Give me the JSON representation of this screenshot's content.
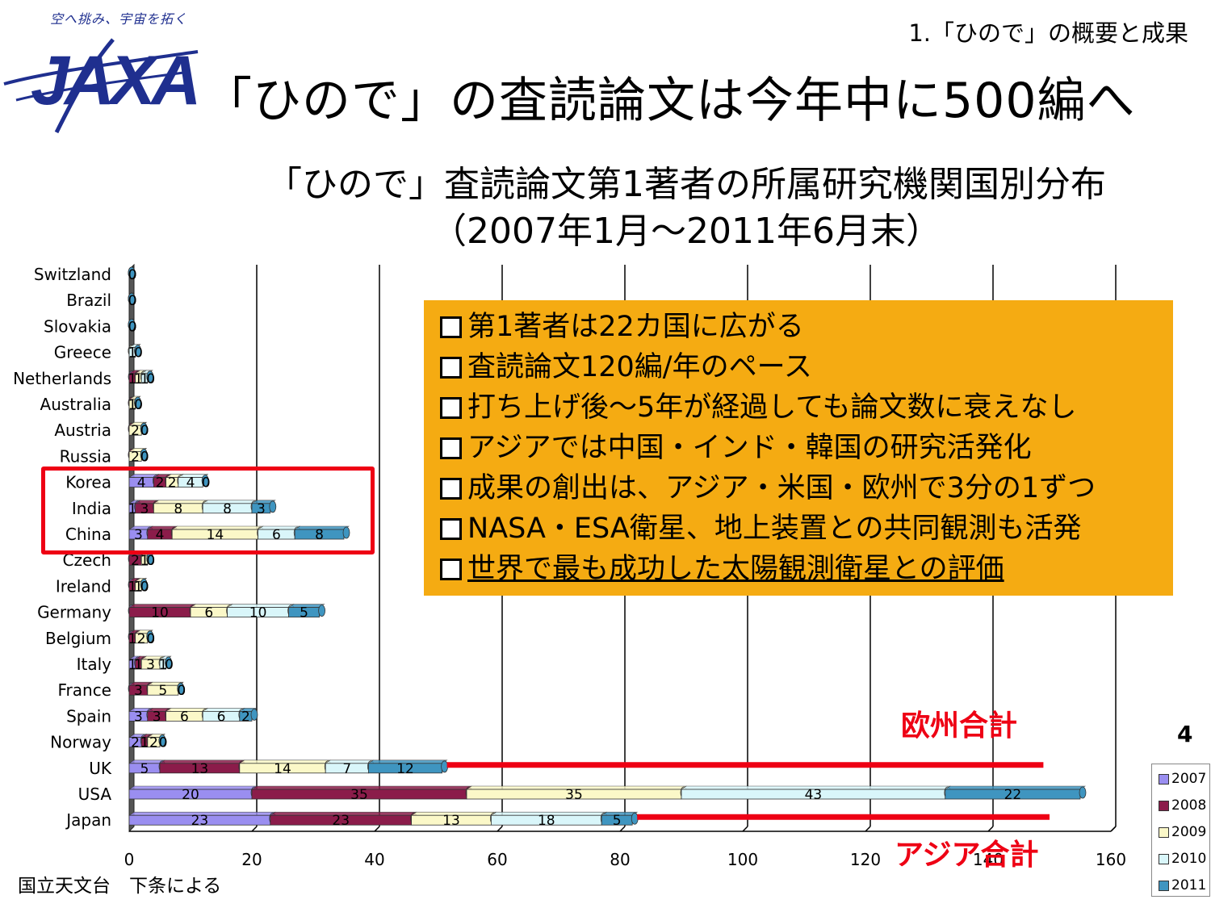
{
  "header": {
    "logo_tagline": "空へ挑み、宇宙を拓く",
    "logo_text": "JAXA",
    "section": "1.「ひので」の概要と成果",
    "title": "「ひので」の査読論文は今年中に500編へ"
  },
  "subtitle": {
    "line1": "「ひので」査読論文第1著者の所属研究機関国別分布",
    "line2": "（2007年1月～2011年6月末）"
  },
  "callout": {
    "items": [
      "第1著者は22カ国に広がる",
      "査読論文120編/年のペース",
      "打ち上げ後～5年が経過しても論文数に衰えなし",
      "アジアでは中国・インド・韓国の研究活発化",
      "成果の創出は、アジア・米国・欧州で3分の1ずつ",
      "NASA・ESA衛星、地上装置との共同観測も活発",
      "世界で最も成功した太陽観測衛星との評価"
    ],
    "bg_color": "#f5ab12"
  },
  "annotations": {
    "europe_total": "欧州合計",
    "asia_total": "アジア合計",
    "red_color": "#ee0014"
  },
  "page_number": "4",
  "source": "国立天文台　下条による",
  "chart_data": {
    "type": "bar",
    "orientation": "horizontal",
    "stacked": true,
    "categories": [
      "Switzland",
      "Brazil",
      "Slovakia",
      "Greece",
      "Netherlands",
      "Australia",
      "Austria",
      "Russia",
      "Korea",
      "India",
      "China",
      "Czech",
      "Ireland",
      "Germany",
      "Belgium",
      "Italy",
      "France",
      "Spain",
      "Norway",
      "UK",
      "USA",
      "Japan"
    ],
    "series": [
      {
        "name": "2007",
        "color": "#9a8ef0",
        "values": [
          0,
          0,
          0,
          0,
          0,
          0,
          0,
          0,
          4,
          1,
          3,
          0,
          0,
          0,
          0,
          1,
          0,
          3,
          2,
          5,
          20,
          23
        ]
      },
      {
        "name": "2008",
        "color": "#8b1c4a",
        "values": [
          0,
          0,
          0,
          0,
          1,
          0,
          0,
          0,
          2,
          3,
          4,
          2,
          1,
          10,
          1,
          1,
          3,
          3,
          1,
          13,
          35,
          23
        ]
      },
      {
        "name": "2009",
        "color": "#fbf8c8",
        "values": [
          0,
          0,
          0,
          0,
          1,
          1,
          2,
          2,
          2,
          8,
          14,
          1,
          1,
          6,
          2,
          3,
          5,
          6,
          2,
          14,
          35,
          13
        ]
      },
      {
        "name": "2010",
        "color": "#d9f6fa",
        "values": [
          0,
          0,
          0,
          1,
          1,
          0,
          0,
          0,
          4,
          8,
          6,
          0,
          0,
          10,
          0,
          1,
          0,
          6,
          0,
          7,
          43,
          18
        ]
      },
      {
        "name": "2011",
        "color": "#3f95c0",
        "values": [
          0,
          0,
          0,
          0,
          0,
          0,
          0,
          0,
          0,
          3,
          8,
          0,
          0,
          5,
          0,
          0,
          0,
          2,
          0,
          12,
          22,
          5
        ]
      }
    ],
    "xlim": [
      0,
      160
    ],
    "xticks": [
      0,
      20,
      40,
      60,
      80,
      100,
      120,
      140,
      160
    ],
    "grid": true,
    "legend_position": "bottom-right",
    "total_lines": [
      {
        "label": "Europe",
        "row": "UK",
        "end": 149
      },
      {
        "label": "Asia",
        "row": "Japan",
        "end": 150
      }
    ]
  }
}
